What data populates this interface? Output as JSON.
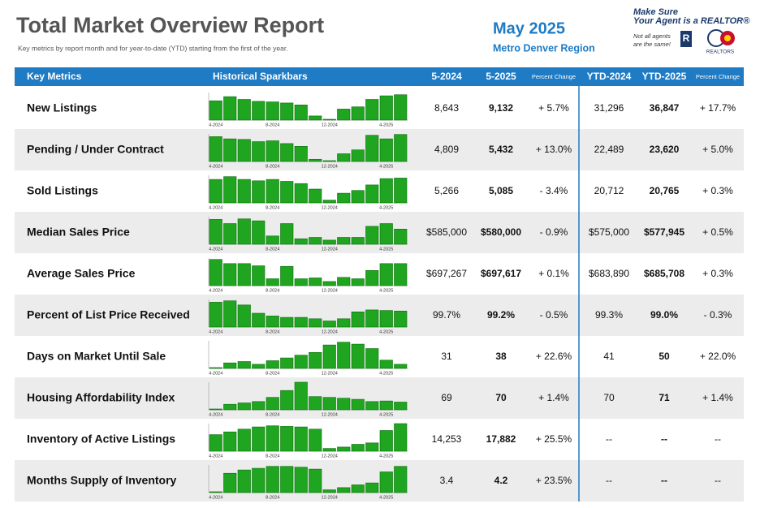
{
  "header": {
    "title": "Total Market Overview Report",
    "subtitle": "Key metrics by report month and for year-to-date (YTD) starting from the first of the year.",
    "period": "May 2025",
    "region": "Metro Denver Region",
    "tagline_1": "Make Sure",
    "tagline_2": "Your Agent is a REALTOR®",
    "note_1": "Not all agents",
    "note_2": "are the same!",
    "logo_text": "REALTORS"
  },
  "table": {
    "columns": [
      "Key Metrics",
      "Historical Sparkbars",
      "5-2024",
      "5-2025",
      "Percent Change",
      "YTD-2024",
      "YTD-2025",
      "Percent Change"
    ],
    "bar_labels": [
      "4-2024",
      "8-2024",
      "12-2024",
      "4-2025"
    ],
    "rows": [
      {
        "metric": "New Listings",
        "bars": [
          70,
          85,
          75,
          68,
          66,
          62,
          55,
          15,
          3,
          40,
          48,
          75,
          88,
          92
        ],
        "cells": [
          "8,643",
          "9,132",
          "+ 5.7%",
          "31,296",
          "36,847",
          "+ 17.7%"
        ]
      },
      {
        "metric": "Pending / Under Contract",
        "bars": [
          90,
          82,
          80,
          72,
          75,
          65,
          55,
          8,
          3,
          28,
          42,
          95,
          82,
          98
        ],
        "cells": [
          "4,809",
          "5,432",
          "+ 13.0%",
          "22,489",
          "23,620",
          "+ 5.0%"
        ]
      },
      {
        "metric": "Sold Listings",
        "bars": [
          85,
          95,
          85,
          80,
          85,
          78,
          70,
          50,
          10,
          35,
          45,
          65,
          88,
          90
        ],
        "cells": [
          "5,266",
          "5,085",
          "- 3.4%",
          "20,712",
          "20,765",
          "+ 0.3%"
        ]
      },
      {
        "metric": "Median Sales Price",
        "bars": [
          90,
          75,
          92,
          85,
          30,
          75,
          20,
          25,
          15,
          25,
          25,
          65,
          75,
          55
        ],
        "cells": [
          "$585,000",
          "$580,000",
          "- 0.9%",
          "$575,000",
          "$577,945",
          "+ 0.5%"
        ]
      },
      {
        "metric": "Average Sales Price",
        "bars": [
          95,
          80,
          80,
          72,
          25,
          70,
          25,
          28,
          15,
          30,
          25,
          55,
          80,
          80
        ],
        "cells": [
          "$697,267",
          "$697,617",
          "+ 0.1%",
          "$683,890",
          "$685,708",
          "+ 0.3%"
        ]
      },
      {
        "metric": "Percent of List Price Received",
        "bars": [
          90,
          95,
          80,
          50,
          40,
          35,
          35,
          30,
          22,
          30,
          55,
          62,
          60,
          58
        ],
        "cells": [
          "99.7%",
          "99.2%",
          "- 0.5%",
          "99.3%",
          "99.0%",
          "- 0.3%"
        ]
      },
      {
        "metric": "Days on Market Until Sale",
        "bars": [
          3,
          20,
          25,
          15,
          28,
          38,
          48,
          58,
          85,
          95,
          88,
          72,
          30,
          15
        ],
        "cells": [
          "31",
          "38",
          "+ 22.6%",
          "41",
          "50",
          "+ 22.0%"
        ]
      },
      {
        "metric": "Housing Affordability Index",
        "bars": [
          3,
          20,
          25,
          30,
          45,
          70,
          100,
          48,
          45,
          42,
          38,
          30,
          32,
          28
        ],
        "cells": [
          "69",
          "70",
          "+ 1.4%",
          "70",
          "71",
          "+ 1.4%"
        ]
      },
      {
        "metric": "Inventory of Active Listings",
        "bars": [
          60,
          70,
          80,
          88,
          92,
          90,
          88,
          80,
          10,
          15,
          25,
          30,
          75,
          100
        ],
        "cells": [
          "14,253",
          "17,882",
          "+ 25.5%",
          "--",
          "--",
          "--"
        ]
      },
      {
        "metric": "Months Supply of Inventory",
        "bars": [
          3,
          70,
          82,
          88,
          95,
          95,
          92,
          85,
          10,
          18,
          28,
          35,
          75,
          95
        ],
        "cells": [
          "3.4",
          "4.2",
          "+ 23.5%",
          "--",
          "--",
          "--"
        ]
      }
    ]
  }
}
